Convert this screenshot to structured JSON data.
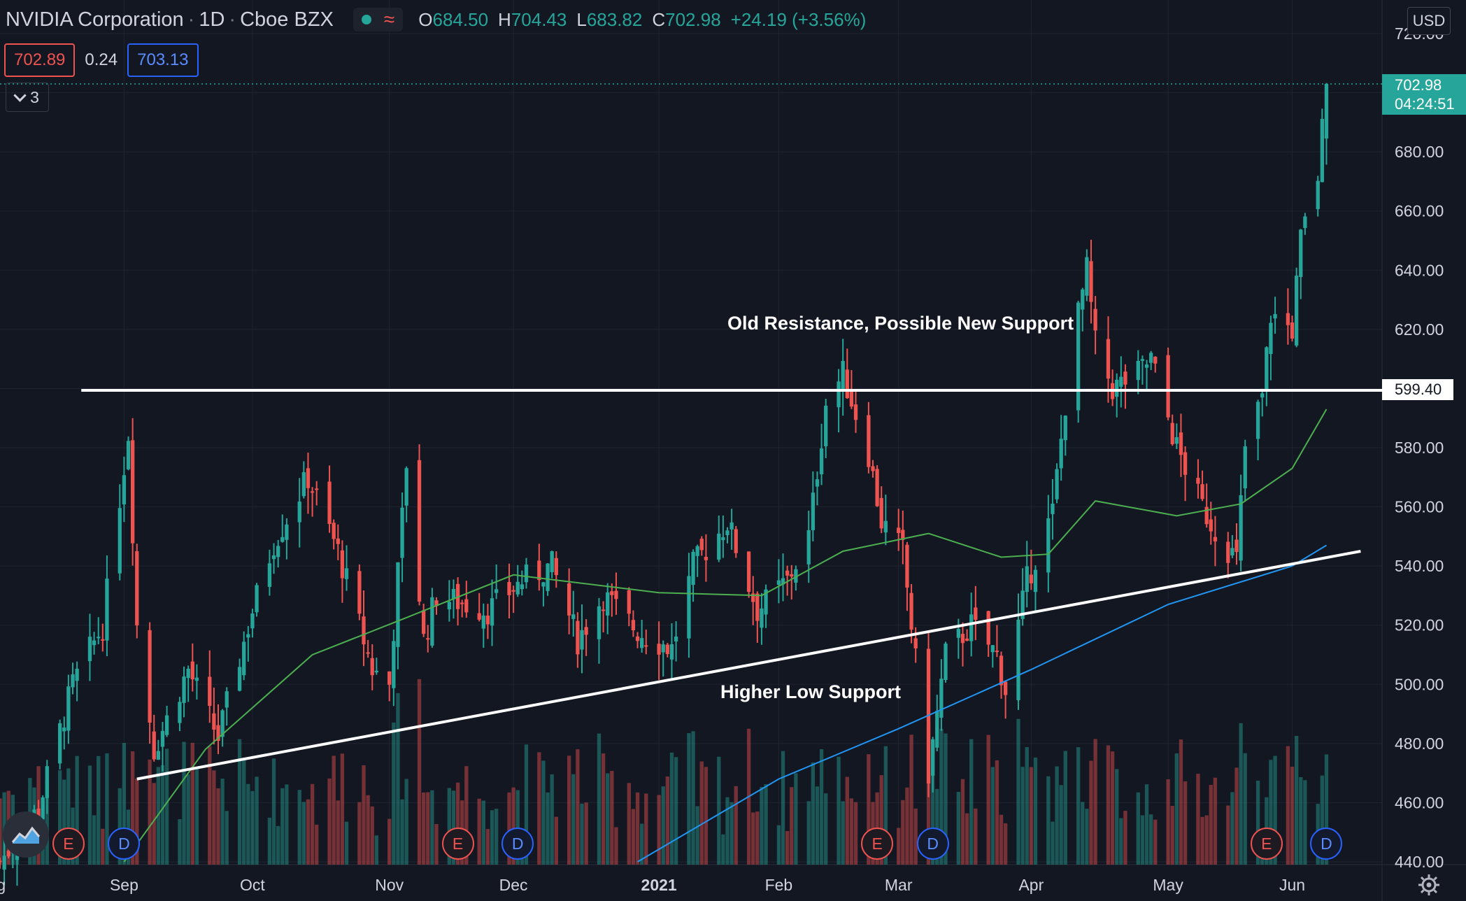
{
  "header": {
    "symbol": "NVIDIA Corporation",
    "interval": "1D",
    "exchange": "Cboe BZX",
    "open_label": "O",
    "open": "684.50",
    "high_label": "H",
    "high": "704.43",
    "low_label": "L",
    "low": "683.82",
    "close_label": "C",
    "close": "702.98",
    "change": "+24.19 (+3.56%)",
    "sep": "·"
  },
  "quote": {
    "bid": "702.89",
    "spread": "0.24",
    "ask": "703.13"
  },
  "indicators_count": "3",
  "currency": "USD",
  "last_price_tag": {
    "price": "702.98",
    "countdown": "04:24:51"
  },
  "line_price_tag": "599.40",
  "annotations": {
    "resistance": "Old Resistance, Possible New Support",
    "support": "Higher Low Support"
  },
  "events": {
    "earnings": "E",
    "dividend": "D"
  },
  "colors": {
    "background": "#131722",
    "grid": "#1f2430",
    "up": "#26a69a",
    "down": "#ef5350",
    "ma_green": "#4caf50",
    "ma_blue": "#2196f3",
    "trendline": "#ffffff",
    "text": "#d1d4dc"
  },
  "icons": [
    "collapse-chevron-icon",
    "tradingview-logo-icon",
    "settings-gear-icon",
    "status-dot-icon",
    "wave-icon"
  ],
  "chart_data": {
    "type": "candlestick",
    "title": "NVIDIA Corporation · 1D · Cboe BZX",
    "ylabel": "",
    "xlabel": "",
    "ylim": [
      440,
      720
    ],
    "y_ticks": [
      440,
      460,
      480,
      500,
      520,
      540,
      560,
      580,
      600,
      620,
      640,
      660,
      680,
      700,
      720
    ],
    "y_tick_labels": [
      "440.00",
      "460.00",
      "480.00",
      "500.00",
      "520.00",
      "540.00",
      "560.00",
      "580.00",
      "600.00",
      "620.00",
      "640.00",
      "660.00",
      "680.00",
      "700.00",
      "720.00"
    ],
    "x_labels": [
      {
        "label": "Aug",
        "date": "2020-08-01"
      },
      {
        "label": "Sep",
        "date": "2020-09-01"
      },
      {
        "label": "Oct",
        "date": "2020-10-01"
      },
      {
        "label": "Nov",
        "date": "2020-11-02"
      },
      {
        "label": "Dec",
        "date": "2020-12-01"
      },
      {
        "label": "2021",
        "date": "2021-01-04"
      },
      {
        "label": "Feb",
        "date": "2021-02-01"
      },
      {
        "label": "Mar",
        "date": "2021-03-01"
      },
      {
        "label": "Apr",
        "date": "2021-04-01"
      },
      {
        "label": "May",
        "date": "2021-05-03"
      },
      {
        "label": "Jun",
        "date": "2021-06-01"
      }
    ],
    "x_range": [
      "2020-08-03",
      "2021-06-22"
    ],
    "grid": true,
    "key_points": [
      [
        "2020-08-03",
        440
      ],
      [
        "2020-08-12",
        458
      ],
      [
        "2020-08-20",
        500
      ],
      [
        "2020-08-27",
        520
      ],
      [
        "2020-09-02",
        585
      ],
      [
        "2020-09-04",
        520
      ],
      [
        "2020-09-08",
        478
      ],
      [
        "2020-09-16",
        505
      ],
      [
        "2020-09-23",
        482
      ],
      [
        "2020-10-01",
        525
      ],
      [
        "2020-10-06",
        548
      ],
      [
        "2020-10-14",
        570
      ],
      [
        "2020-10-21",
        545
      ],
      [
        "2020-10-29",
        505
      ],
      [
        "2020-11-02",
        500
      ],
      [
        "2020-11-06",
        575
      ],
      [
        "2020-11-10",
        515
      ],
      [
        "2020-11-13",
        530
      ],
      [
        "2020-11-25",
        525
      ],
      [
        "2020-12-03",
        535
      ],
      [
        "2020-12-10",
        540
      ],
      [
        "2020-12-16",
        515
      ],
      [
        "2020-12-22",
        530
      ],
      [
        "2020-12-30",
        518
      ],
      [
        "2021-01-07",
        512
      ],
      [
        "2021-01-12",
        540
      ],
      [
        "2021-01-20",
        555
      ],
      [
        "2021-01-27",
        525
      ],
      [
        "2021-02-03",
        535
      ],
      [
        "2021-02-08",
        550
      ],
      [
        "2021-02-12",
        595
      ],
      [
        "2021-02-16",
        605
      ],
      [
        "2021-02-22",
        578
      ],
      [
        "2021-02-25",
        555
      ],
      [
        "2021-03-02",
        545
      ],
      [
        "2021-03-04",
        520
      ],
      [
        "2021-03-08",
        470
      ],
      [
        "2021-03-12",
        510
      ],
      [
        "2021-03-18",
        520
      ],
      [
        "2021-03-24",
        510
      ],
      [
        "2021-03-26",
        498
      ],
      [
        "2021-03-31",
        535
      ],
      [
        "2021-04-06",
        558
      ],
      [
        "2021-04-09",
        595
      ],
      [
        "2021-04-12",
        625
      ],
      [
        "2021-04-14",
        640
      ],
      [
        "2021-04-16",
        615
      ],
      [
        "2021-04-20",
        600
      ],
      [
        "2021-04-26",
        605
      ],
      [
        "2021-04-29",
        610
      ],
      [
        "2021-05-05",
        580
      ],
      [
        "2021-05-11",
        560
      ],
      [
        "2021-05-14",
        552
      ],
      [
        "2021-05-19",
        542
      ],
      [
        "2021-05-21",
        580
      ],
      [
        "2021-05-25",
        597
      ],
      [
        "2021-05-27",
        625
      ],
      [
        "2021-06-01",
        620
      ],
      [
        "2021-06-03",
        650
      ],
      [
        "2021-06-07",
        672
      ],
      [
        "2021-06-09",
        702.98
      ]
    ],
    "series": [
      {
        "name": "",
        "color": "#4caf50",
        "points": [
          [
            "2020-09-01",
            440
          ],
          [
            "2020-09-20",
            478
          ],
          [
            "2020-10-15",
            510
          ],
          [
            "2020-11-05",
            522
          ],
          [
            "2020-12-01",
            537
          ],
          [
            "2021-01-04",
            531
          ],
          [
            "2021-01-28",
            530
          ],
          [
            "2021-02-16",
            545
          ],
          [
            "2021-03-08",
            551
          ],
          [
            "2021-03-25",
            543
          ],
          [
            "2021-04-05",
            544
          ],
          [
            "2021-04-16",
            562
          ],
          [
            "2021-05-05",
            557
          ],
          [
            "2021-05-20",
            561
          ],
          [
            "2021-06-01",
            573
          ],
          [
            "2021-06-09",
            593
          ]
        ]
      },
      {
        "name": "",
        "color": "#2196f3",
        "points": [
          [
            "2020-12-30",
            440
          ],
          [
            "2021-02-01",
            468
          ],
          [
            "2021-03-01",
            485
          ],
          [
            "2021-04-01",
            505
          ],
          [
            "2021-05-03",
            527
          ],
          [
            "2021-06-01",
            540
          ],
          [
            "2021-06-09",
            547
          ]
        ]
      }
    ],
    "trendlines": [
      {
        "name": "resistance",
        "points": [
          [
            "2020-08-22",
            599.4
          ],
          [
            "2021-06-30",
            599.4
          ]
        ]
      },
      {
        "name": "support",
        "points": [
          [
            "2020-09-04",
            468
          ],
          [
            "2021-06-17",
            545
          ]
        ]
      }
    ],
    "event_markers": [
      {
        "type": "E",
        "date": "2020-08-19"
      },
      {
        "type": "D",
        "date": "2020-09-01"
      },
      {
        "type": "E",
        "date": "2020-11-18"
      },
      {
        "type": "D",
        "date": "2020-12-02"
      },
      {
        "type": "E",
        "date": "2021-02-24"
      },
      {
        "type": "D",
        "date": "2021-03-09"
      },
      {
        "type": "E",
        "date": "2021-05-26"
      },
      {
        "type": "D",
        "date": "2021-06-09"
      }
    ]
  }
}
